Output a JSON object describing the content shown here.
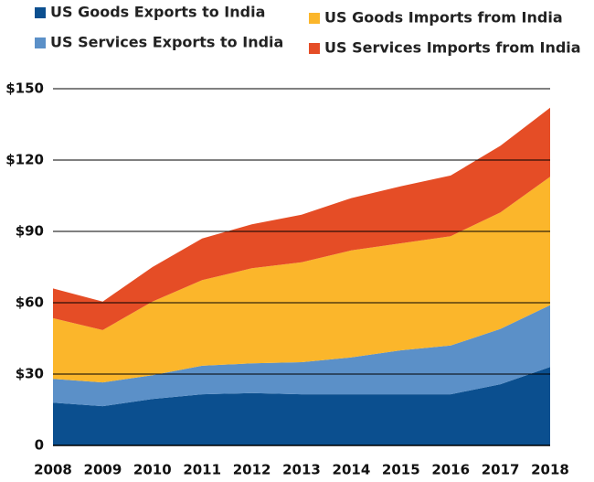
{
  "chart_data": {
    "type": "stacked-area",
    "x": [
      2008,
      2009,
      2010,
      2011,
      2012,
      2013,
      2014,
      2015,
      2016,
      2017,
      2018
    ],
    "xlim": [
      2008,
      2018
    ],
    "ylim": [
      0,
      150
    ],
    "yticks": [
      0,
      {
        "value": 30,
        "label": "$30"
      },
      {
        "value": 60,
        "label": "$60"
      },
      {
        "value": 90,
        "label": "$90"
      },
      {
        "value": 120,
        "label": "$120"
      },
      {
        "value": 150,
        "label": "$150"
      }
    ],
    "grid": true,
    "series": [
      {
        "name": "US Goods Exports to India",
        "color": "#0b4f8f",
        "values": [
          18,
          16.5,
          19.5,
          21.5,
          22,
          21.5,
          21.5,
          21.5,
          21.5,
          25.7,
          33
        ]
      },
      {
        "name": "US Services Exports to India",
        "color": "#5b90c8",
        "values": [
          10,
          10,
          10,
          12,
          12.5,
          13.5,
          15.5,
          18.5,
          20.5,
          23.3,
          26
        ]
      },
      {
        "name": "US Goods Imports from India",
        "color": "#fbb62b",
        "values": [
          25.5,
          22,
          31,
          36,
          40,
          42,
          45,
          45,
          46,
          49,
          54
        ]
      },
      {
        "name": "US Services Imports from India",
        "color": "#e54d26",
        "values": [
          12.5,
          12,
          14.5,
          17.5,
          18.5,
          20,
          22,
          24,
          25.5,
          28,
          29
        ]
      }
    ]
  }
}
